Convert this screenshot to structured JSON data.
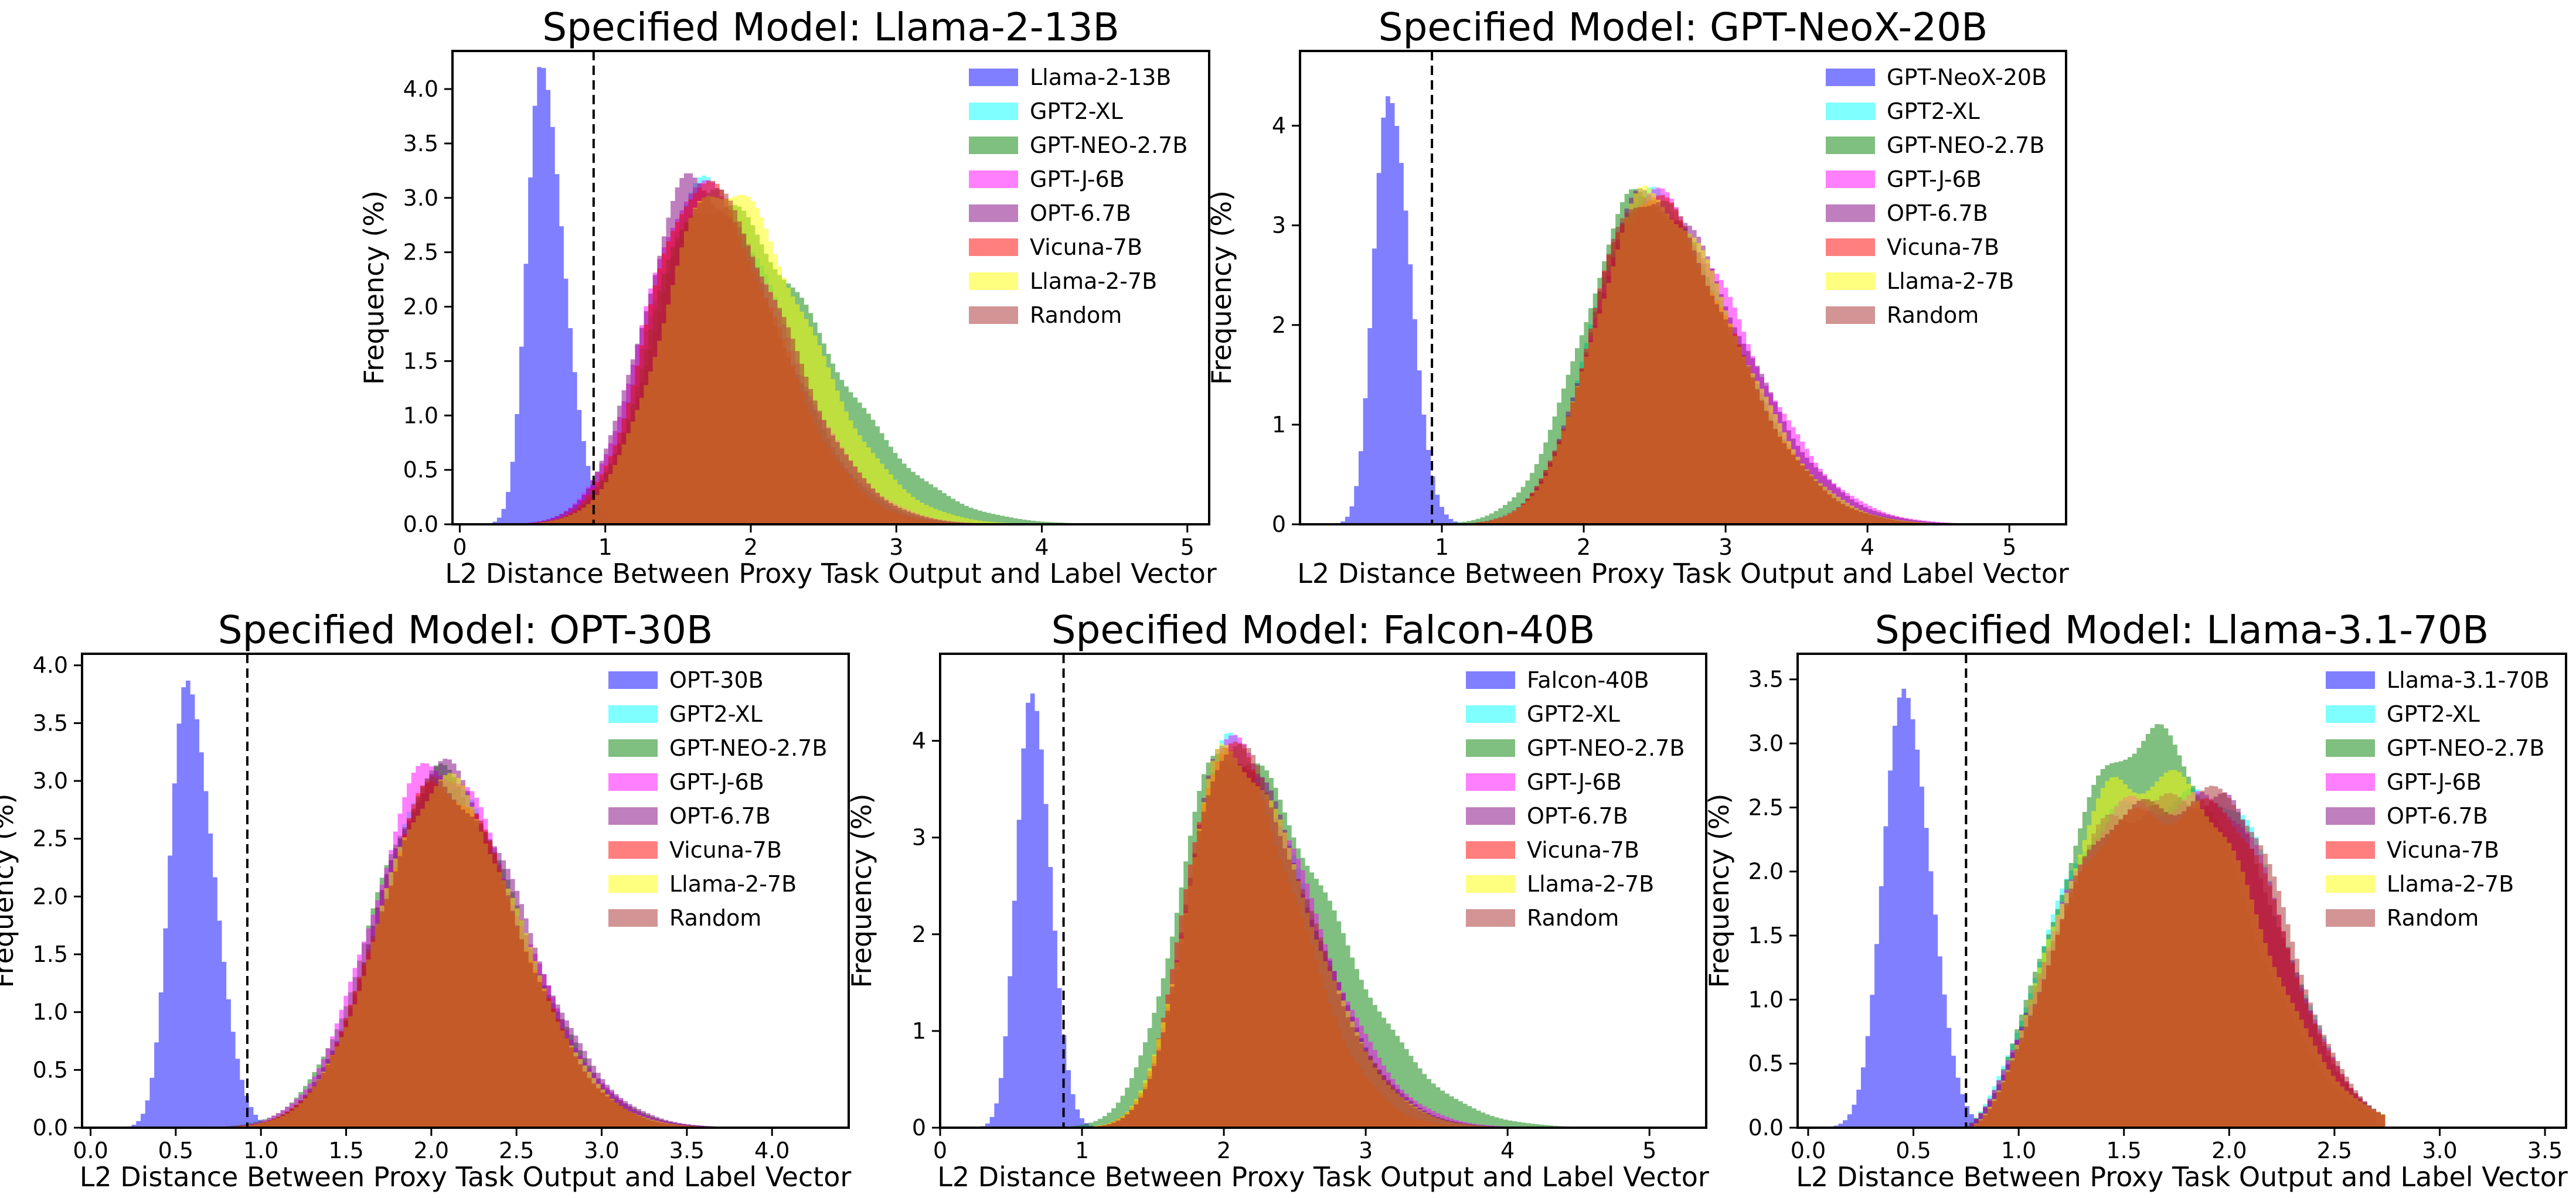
{
  "chart_data": [
    {
      "type": "histogram",
      "title": "Specified Model: Llama-2-13B",
      "xlabel": "L2 Distance Between Proxy Task Output and Label Vector",
      "ylabel": "Frequency (%)",
      "xlim": [
        -0.05,
        5.15
      ],
      "ylim": [
        0,
        4.35
      ],
      "xticks": [
        0,
        1,
        2,
        3,
        4,
        5
      ],
      "yticks": [
        0.0,
        0.5,
        1.0,
        1.5,
        2.0,
        2.5,
        3.0,
        3.5,
        4.0
      ],
      "ytick_decimals": 1,
      "threshold": 0.92,
      "legend_position": "top-right",
      "grid": false,
      "series": [
        {
          "name": "Llama-2-13B",
          "color": "#0000ff",
          "kind": "skewnormal",
          "peak_x": 0.56,
          "peak_y": 4.1,
          "sigma_left": 0.1,
          "sigma_right": 0.16
        },
        {
          "name": "GPT2-XL",
          "color": "#00ffff",
          "kind": "skewnormal",
          "peak_x": 1.66,
          "peak_y": 3.1,
          "sigma_left": 0.35,
          "sigma_right": 0.55
        },
        {
          "name": "GPT-NEO-2.7B",
          "color": "#008000",
          "kind": "skewnormal",
          "peak_x": 1.7,
          "peak_y": 2.95,
          "sigma_left": 0.36,
          "sigma_right": 0.75
        },
        {
          "name": "GPT-J-6B",
          "color": "#ff00ff",
          "kind": "skewnormal",
          "peak_x": 1.62,
          "peak_y": 3.1,
          "sigma_left": 0.35,
          "sigma_right": 0.58
        },
        {
          "name": "OPT-6.7B",
          "color": "#800080",
          "kind": "skewnormal",
          "peak_x": 1.6,
          "peak_y": 3.15,
          "sigma_left": 0.34,
          "sigma_right": 0.56
        },
        {
          "name": "Vicuna-7B",
          "color": "#ff0000",
          "kind": "skewnormal",
          "peak_x": 1.64,
          "peak_y": 3.12,
          "sigma_left": 0.34,
          "sigma_right": 0.52
        },
        {
          "name": "Llama-2-7B",
          "color": "#ffff00",
          "kind": "skewnormal",
          "peak_x": 1.78,
          "peak_y": 3.1,
          "sigma_left": 0.38,
          "sigma_right": 0.6
        },
        {
          "name": "Random",
          "color": "#a52a2a",
          "kind": "skewnormal",
          "peak_x": 1.68,
          "peak_y": 3.05,
          "sigma_left": 0.35,
          "sigma_right": 0.55
        }
      ]
    },
    {
      "type": "histogram",
      "title": "Specified Model: GPT-NeoX-20B",
      "xlabel": "L2 Distance Between Proxy Task Output and Label Vector",
      "ylabel": "Frequency (%)",
      "xlim": [
        0.0,
        5.4
      ],
      "ylim": [
        0,
        4.75
      ],
      "xticks": [
        1,
        2,
        3,
        4,
        5
      ],
      "yticks": [
        0,
        1,
        2,
        3,
        4
      ],
      "ytick_decimals": 0,
      "threshold": 0.93,
      "legend_position": "top-right",
      "grid": false,
      "series": [
        {
          "name": "GPT-NeoX-20B",
          "color": "#0000ff",
          "kind": "skewnormal",
          "peak_x": 0.62,
          "peak_y": 4.45,
          "sigma_left": 0.1,
          "sigma_right": 0.15
        },
        {
          "name": "GPT2-XL",
          "color": "#00ffff",
          "kind": "skewnormal",
          "peak_x": 2.42,
          "peak_y": 3.3,
          "sigma_left": 0.36,
          "sigma_right": 0.6
        },
        {
          "name": "GPT-NEO-2.7B",
          "color": "#008000",
          "kind": "skewnormal",
          "peak_x": 2.4,
          "peak_y": 3.3,
          "sigma_left": 0.4,
          "sigma_right": 0.62
        },
        {
          "name": "GPT-J-6B",
          "color": "#ff00ff",
          "kind": "skewnormal",
          "peak_x": 2.45,
          "peak_y": 3.3,
          "sigma_left": 0.37,
          "sigma_right": 0.65
        },
        {
          "name": "OPT-6.7B",
          "color": "#800080",
          "kind": "skewnormal",
          "peak_x": 2.44,
          "peak_y": 3.3,
          "sigma_left": 0.37,
          "sigma_right": 0.64
        },
        {
          "name": "Vicuna-7B",
          "color": "#ff0000",
          "kind": "skewnormal",
          "peak_x": 2.42,
          "peak_y": 3.3,
          "sigma_left": 0.36,
          "sigma_right": 0.6
        },
        {
          "name": "Llama-2-7B",
          "color": "#ffff00",
          "kind": "skewnormal",
          "peak_x": 2.45,
          "peak_y": 3.3,
          "sigma_left": 0.37,
          "sigma_right": 0.6
        },
        {
          "name": "Random",
          "color": "#a52a2a",
          "kind": "skewnormal",
          "peak_x": 2.42,
          "peak_y": 3.3,
          "sigma_left": 0.36,
          "sigma_right": 0.6
        }
      ]
    },
    {
      "type": "histogram",
      "title": "Specified Model: OPT-30B",
      "xlabel": "L2 Distance Between Proxy Task Output and Label Vector",
      "ylabel": "Frequency (%)",
      "xlim": [
        -0.05,
        4.45
      ],
      "ylim": [
        0,
        4.1
      ],
      "xticks": [
        0.0,
        0.5,
        1.0,
        1.5,
        2.0,
        2.5,
        3.0,
        3.5,
        4.0
      ],
      "yticks": [
        0.0,
        0.5,
        1.0,
        1.5,
        2.0,
        2.5,
        3.0,
        3.5,
        4.0
      ],
      "ytick_decimals": 1,
      "threshold": 0.92,
      "legend_position": "top-right",
      "grid": false,
      "series": [
        {
          "name": "OPT-30B",
          "color": "#0000ff",
          "kind": "skewnormal",
          "peak_x": 0.57,
          "peak_y": 3.9,
          "sigma_left": 0.1,
          "sigma_right": 0.15
        },
        {
          "name": "GPT2-XL",
          "color": "#00ffff",
          "kind": "skewnormal",
          "peak_x": 2.05,
          "peak_y": 3.0,
          "sigma_left": 0.36,
          "sigma_right": 0.45
        },
        {
          "name": "GPT-NEO-2.7B",
          "color": "#008000",
          "kind": "skewnormal",
          "peak_x": 2.03,
          "peak_y": 3.05,
          "sigma_left": 0.37,
          "sigma_right": 0.48
        },
        {
          "name": "GPT-J-6B",
          "color": "#ff00ff",
          "kind": "skewnormal",
          "peak_x": 2.02,
          "peak_y": 3.15,
          "sigma_left": 0.36,
          "sigma_right": 0.48
        },
        {
          "name": "OPT-6.7B",
          "color": "#800080",
          "kind": "skewnormal",
          "peak_x": 2.05,
          "peak_y": 3.1,
          "sigma_left": 0.36,
          "sigma_right": 0.48
        },
        {
          "name": "Vicuna-7B",
          "color": "#ff0000",
          "kind": "skewnormal",
          "peak_x": 2.05,
          "peak_y": 2.98,
          "sigma_left": 0.36,
          "sigma_right": 0.45
        },
        {
          "name": "Llama-2-7B",
          "color": "#ffff00",
          "kind": "skewnormal",
          "peak_x": 2.06,
          "peak_y": 3.0,
          "sigma_left": 0.36,
          "sigma_right": 0.45
        },
        {
          "name": "Random",
          "color": "#a52a2a",
          "kind": "skewnormal",
          "peak_x": 2.05,
          "peak_y": 2.98,
          "sigma_left": 0.36,
          "sigma_right": 0.45
        }
      ]
    },
    {
      "type": "histogram",
      "title": "Specified Model: Falcon-40B",
      "xlabel": "L2 Distance Between Proxy Task Output and Label Vector",
      "ylabel": "Frequency (%)",
      "xlim": [
        0.0,
        5.4
      ],
      "ylim": [
        0,
        4.9
      ],
      "xticks": [
        0,
        1,
        2,
        3,
        4,
        5
      ],
      "yticks": [
        0,
        1,
        2,
        3,
        4
      ],
      "ytick_decimals": 0,
      "threshold": 0.87,
      "legend_position": "top-right",
      "grid": false,
      "series": [
        {
          "name": "Falcon-40B",
          "color": "#0000ff",
          "kind": "skewnormal",
          "peak_x": 0.64,
          "peak_y": 4.65,
          "sigma_left": 0.1,
          "sigma_right": 0.13
        },
        {
          "name": "GPT2-XL",
          "color": "#00ffff",
          "kind": "skewnormal",
          "peak_x": 2.02,
          "peak_y": 3.95,
          "sigma_left": 0.27,
          "sigma_right": 0.55
        },
        {
          "name": "GPT-NEO-2.7B",
          "color": "#008000",
          "kind": "skewnormal",
          "peak_x": 2.0,
          "peak_y": 3.9,
          "sigma_left": 0.32,
          "sigma_right": 0.72
        },
        {
          "name": "GPT-J-6B",
          "color": "#ff00ff",
          "kind": "skewnormal",
          "peak_x": 2.02,
          "peak_y": 3.95,
          "sigma_left": 0.27,
          "sigma_right": 0.58
        },
        {
          "name": "OPT-6.7B",
          "color": "#800080",
          "kind": "skewnormal",
          "peak_x": 2.02,
          "peak_y": 3.95,
          "sigma_left": 0.27,
          "sigma_right": 0.56
        },
        {
          "name": "Vicuna-7B",
          "color": "#ff0000",
          "kind": "skewnormal",
          "peak_x": 2.0,
          "peak_y": 3.95,
          "sigma_left": 0.27,
          "sigma_right": 0.5
        },
        {
          "name": "Llama-2-7B",
          "color": "#ffff00",
          "kind": "skewnormal",
          "peak_x": 2.02,
          "peak_y": 3.9,
          "sigma_left": 0.28,
          "sigma_right": 0.55
        },
        {
          "name": "Random",
          "color": "#a52a2a",
          "kind": "skewnormal",
          "peak_x": 2.02,
          "peak_y": 3.95,
          "sigma_left": 0.27,
          "sigma_right": 0.55
        }
      ]
    },
    {
      "type": "histogram",
      "title": "Specified Model: Llama-3.1-70B",
      "xlabel": "L2 Distance Between Proxy Task Output and Label Vector",
      "ylabel": "Frequency (%)",
      "xlim": [
        -0.05,
        3.6
      ],
      "ylim": [
        0,
        3.7
      ],
      "xticks": [
        0.0,
        0.5,
        1.0,
        1.5,
        2.0,
        2.5,
        3.0,
        3.5
      ],
      "yticks": [
        0.0,
        0.5,
        1.0,
        1.5,
        2.0,
        2.5,
        3.0,
        3.5
      ],
      "ytick_decimals": 1,
      "threshold": 0.75,
      "legend_position": "top-right",
      "grid": false,
      "series": [
        {
          "name": "Llama-3.1-70B",
          "color": "#0000ff",
          "kind": "skewnormal",
          "peak_x": 0.46,
          "peak_y": 3.45,
          "sigma_left": 0.1,
          "sigma_right": 0.12
        },
        {
          "name": "GPT2-XL",
          "color": "#00ffff",
          "kind": "plateau",
          "start": 0.72,
          "rise_end": 1.45,
          "plateau_y": 2.45,
          "peak_x": 1.95,
          "peak_y": 2.6,
          "end": 2.75
        },
        {
          "name": "GPT-NEO-2.7B",
          "color": "#008000",
          "kind": "plateau",
          "start": 0.72,
          "rise_end": 1.55,
          "plateau_y": 3.0,
          "peak_x": 1.65,
          "peak_y": 3.05,
          "end": 2.7
        },
        {
          "name": "GPT-J-6B",
          "color": "#ff00ff",
          "kind": "plateau",
          "start": 0.72,
          "rise_end": 1.5,
          "plateau_y": 2.5,
          "peak_x": 1.95,
          "peak_y": 2.55,
          "end": 2.75
        },
        {
          "name": "OPT-6.7B",
          "color": "#800080",
          "kind": "plateau",
          "start": 0.72,
          "rise_end": 1.5,
          "plateau_y": 2.45,
          "peak_x": 1.92,
          "peak_y": 2.6,
          "end": 2.75
        },
        {
          "name": "Vicuna-7B",
          "color": "#ff0000",
          "kind": "plateau",
          "start": 0.75,
          "rise_end": 1.5,
          "plateau_y": 2.4,
          "peak_x": 1.95,
          "peak_y": 2.5,
          "end": 2.75
        },
        {
          "name": "Llama-2-7B",
          "color": "#ffff00",
          "kind": "plateau",
          "start": 0.75,
          "rise_end": 1.5,
          "plateau_y": 2.7,
          "peak_x": 1.75,
          "peak_y": 2.7,
          "end": 2.75
        },
        {
          "name": "Random",
          "color": "#a52a2a",
          "kind": "plateau",
          "start": 0.75,
          "rise_end": 1.5,
          "plateau_y": 2.45,
          "peak_x": 1.98,
          "peak_y": 2.6,
          "end": 2.75
        }
      ]
    }
  ]
}
